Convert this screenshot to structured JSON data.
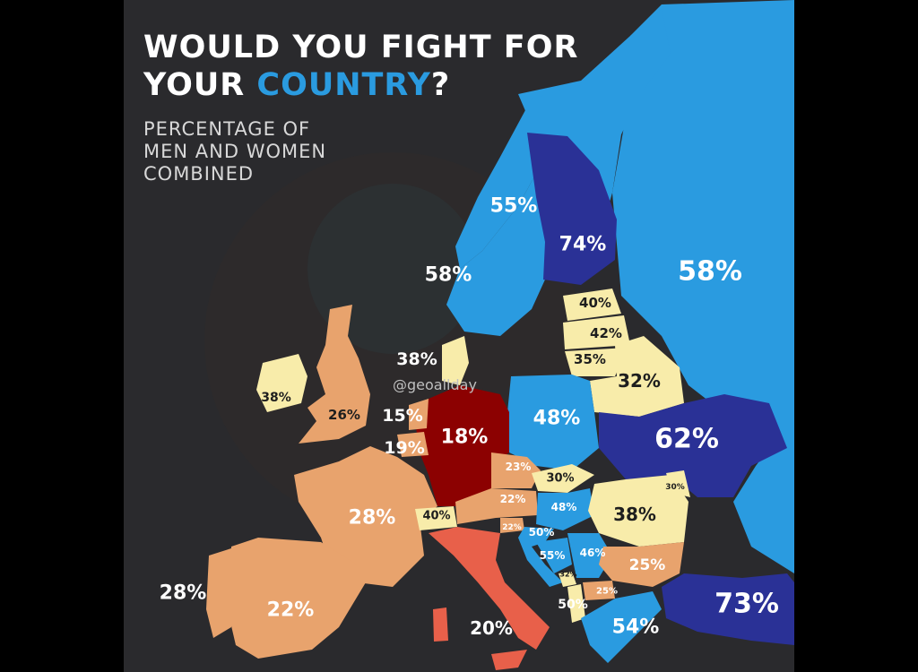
{
  "title": {
    "line1": "WOULD YOU FIGHT FOR",
    "line2_start": "YOUR ",
    "line2_highlight": "COUNTRY",
    "line2_end": "?"
  },
  "subtitle": {
    "line1": "PERCENTAGE OF",
    "line2": "MEN AND WOMEN",
    "line3": "COMBINED"
  },
  "handle": "@geoallday",
  "colors": {
    "background": "#2a2a2d",
    "sea_dark": "#2a2a2d",
    "light_blue": "#2a9be0",
    "dark_blue": "#2a3196",
    "pale_yellow": "#f8ecaa",
    "tan": "#e8a36d",
    "coral": "#e8604a",
    "dark_red": "#8c0101",
    "highlight_text": "#2a9be0"
  },
  "labels": {
    "norway": "55%",
    "sweden": "58%",
    "finland": "74%",
    "russia": "58%",
    "estonia": "40%",
    "latvia": "42%",
    "lithuania": "35%",
    "belarus": "32%",
    "denmark": "38%",
    "ireland": "38%",
    "uk": "26%",
    "netherlands": "15%",
    "belgium": "19%",
    "germany": "18%",
    "poland": "48%",
    "ukraine": "62%",
    "czechia": "23%",
    "slovakia": "30%",
    "austria": "22%",
    "switzerland": "40%",
    "hungary": "48%",
    "romania": "38%",
    "moldova": "30%",
    "slovenia": "22%",
    "croatia": "50%",
    "bosnia": "55%",
    "serbia": "46%",
    "bulgaria": "25%",
    "montenegro": "32%",
    "macedonia": "25%",
    "albania": "50%",
    "greece": "54%",
    "turkey": "73%",
    "france": "28%",
    "spain": "22%",
    "portugal": "28%",
    "italy": "20%"
  }
}
